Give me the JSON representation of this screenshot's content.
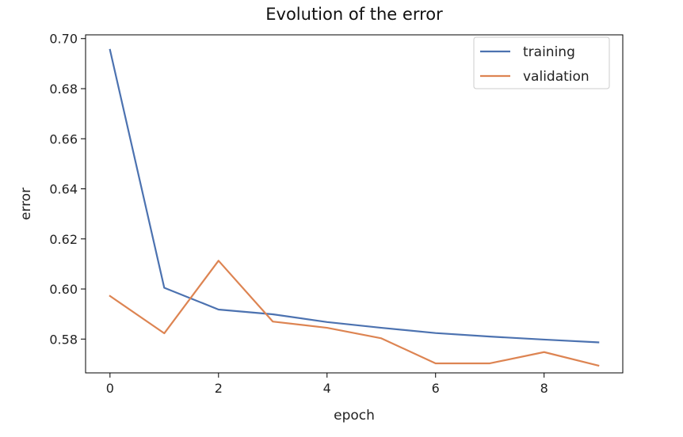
{
  "chart_data": {
    "type": "line",
    "title": "Evolution of the error",
    "xlabel": "epoch",
    "ylabel": "error",
    "x": [
      0,
      1,
      2,
      3,
      4,
      5,
      6,
      7,
      8,
      9
    ],
    "xlim": [
      -0.45,
      9.45
    ],
    "ylim": [
      0.5665,
      0.7015
    ],
    "xticks": [
      0,
      2,
      4,
      6,
      8
    ],
    "yticks": [
      0.58,
      0.6,
      0.62,
      0.64,
      0.66,
      0.68,
      0.7
    ],
    "ytick_labels": [
      "0.58",
      "0.60",
      "0.62",
      "0.64",
      "0.66",
      "0.68",
      "0.70"
    ],
    "grid": false,
    "legend_position": "top-right",
    "series": [
      {
        "name": "training",
        "color": "#4c72b0",
        "values": [
          0.6955,
          0.6005,
          0.5918,
          0.5899,
          0.5868,
          0.5845,
          0.5824,
          0.581,
          0.5798,
          0.5787
        ]
      },
      {
        "name": "validation",
        "color": "#dd8452",
        "values": [
          0.5972,
          0.5823,
          0.6113,
          0.587,
          0.5845,
          0.5803,
          0.5703,
          0.5703,
          0.5748,
          0.5694
        ]
      }
    ]
  }
}
